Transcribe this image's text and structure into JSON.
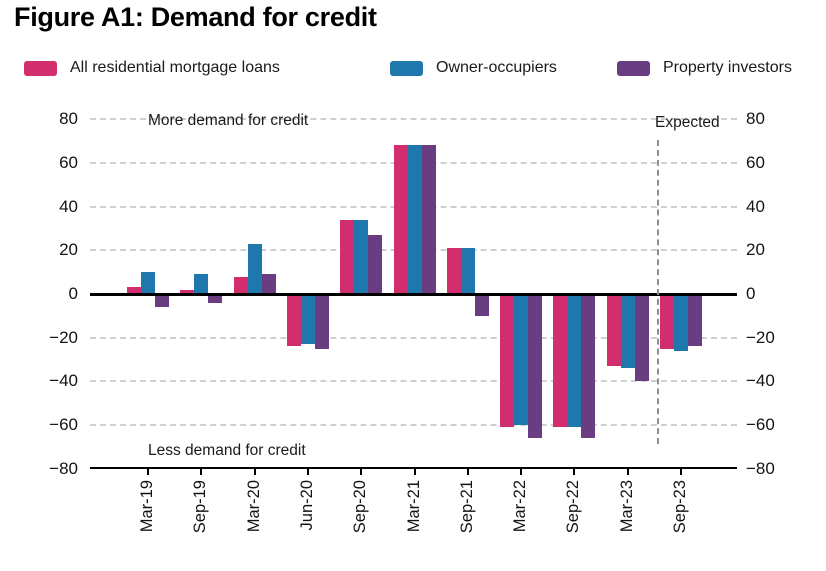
{
  "title": "Figure A1: Demand for credit",
  "legend": [
    {
      "label": "All residential mortgage loans",
      "color": "#d22d6d"
    },
    {
      "label": "Owner-occupiers",
      "color": "#1f78ad"
    },
    {
      "label": "Property investors",
      "color": "#6a3d82"
    }
  ],
  "chart_data": {
    "type": "bar",
    "title": "Figure A1: Demand for credit",
    "categories": [
      "Mar-19",
      "Sep-19",
      "Mar-20",
      "Jun-20",
      "Sep-20",
      "Mar-21",
      "Sep-21",
      "Mar-22",
      "Sep-22",
      "Mar-23",
      "Sep-23"
    ],
    "series": [
      {
        "name": "All residential mortgage loans",
        "color": "#d22d6d",
        "values": [
          3,
          2,
          8,
          -24,
          34,
          68,
          21,
          -61,
          -61,
          -33,
          -25
        ]
      },
      {
        "name": "Owner-occupiers",
        "color": "#1f78ad",
        "values": [
          10,
          9,
          23,
          -23,
          34,
          68,
          21,
          -60,
          -61,
          -34,
          -26
        ]
      },
      {
        "name": "Property investors",
        "color": "#6a3d82",
        "values": [
          -6,
          -4,
          9,
          -25,
          27,
          68,
          -10,
          -66,
          -66,
          -40,
          -24
        ]
      }
    ],
    "ylim": [
      -80,
      80
    ],
    "y_tick_values": [
      80,
      60,
      40,
      20,
      0,
      -20,
      -40,
      -60,
      -80
    ],
    "y_tick_labels": [
      "80",
      "60",
      "40",
      "20",
      "0",
      "−20",
      "−40",
      "−60",
      "−80"
    ],
    "grid": "horizontal dashed, zero line solid black",
    "legend_position": "top",
    "annotations": {
      "top": "More demand for credit",
      "bottom": "Less demand for credit",
      "expected": "Expected"
    },
    "expected_divider_before_category": "Sep-23"
  }
}
